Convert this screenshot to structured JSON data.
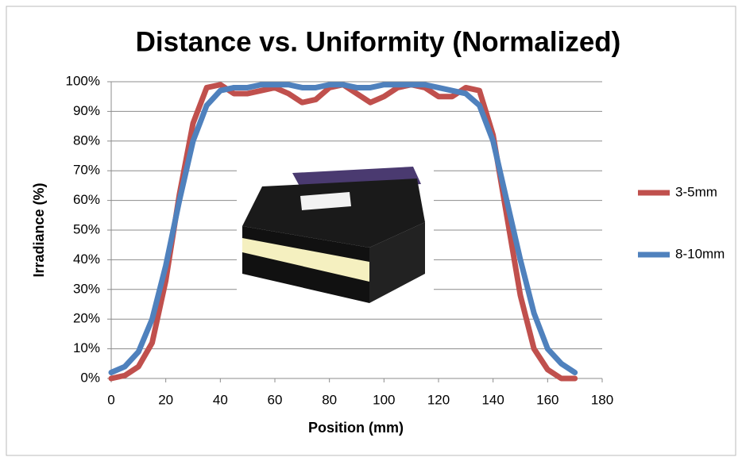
{
  "chart_data": {
    "type": "line",
    "title": "Distance vs. Uniformity (Normalized)",
    "x_label": "Position (mm)",
    "y_label": "Irradiance (%)",
    "x": [
      0,
      5,
      10,
      15,
      20,
      25,
      30,
      35,
      40,
      45,
      50,
      55,
      60,
      65,
      70,
      75,
      80,
      85,
      90,
      95,
      100,
      105,
      110,
      115,
      120,
      125,
      130,
      135,
      140,
      145,
      150,
      155,
      160,
      165,
      170
    ],
    "series": [
      {
        "name": "3-5mm",
        "color": "#c0504d",
        "values": [
          0,
          1,
          4,
          12,
          33,
          62,
          86,
          98,
          99,
          96,
          96,
          97,
          98,
          96,
          93,
          94,
          98,
          99,
          96,
          93,
          95,
          98,
          99,
          98,
          95,
          95,
          98,
          97,
          82,
          55,
          28,
          10,
          3,
          0,
          0
        ]
      },
      {
        "name": "8-10mm",
        "color": "#4f81bd",
        "values": [
          2,
          4,
          9,
          20,
          38,
          60,
          80,
          92,
          97,
          98,
          98,
          99,
          99,
          99,
          98,
          98,
          99,
          99,
          98,
          98,
          99,
          99,
          99,
          99,
          98,
          97,
          96,
          92,
          80,
          60,
          40,
          22,
          10,
          5,
          2
        ]
      }
    ],
    "xlim": [
      0,
      180
    ],
    "xticks": [
      0,
      20,
      40,
      60,
      80,
      100,
      120,
      140,
      160,
      180
    ],
    "ylim": [
      0,
      100
    ],
    "yticks": [
      {
        "value": 0,
        "label": "0%"
      },
      {
        "value": 10,
        "label": "10%"
      },
      {
        "value": 20,
        "label": "20%"
      },
      {
        "value": 30,
        "label": "30%"
      },
      {
        "value": 40,
        "label": "40%"
      },
      {
        "value": 50,
        "label": "50%"
      },
      {
        "value": 60,
        "label": "60%"
      },
      {
        "value": 70,
        "label": "70%"
      },
      {
        "value": 80,
        "label": "80%"
      },
      {
        "value": 90,
        "label": "90%"
      },
      {
        "value": 100,
        "label": "100%"
      }
    ],
    "grid": true
  }
}
